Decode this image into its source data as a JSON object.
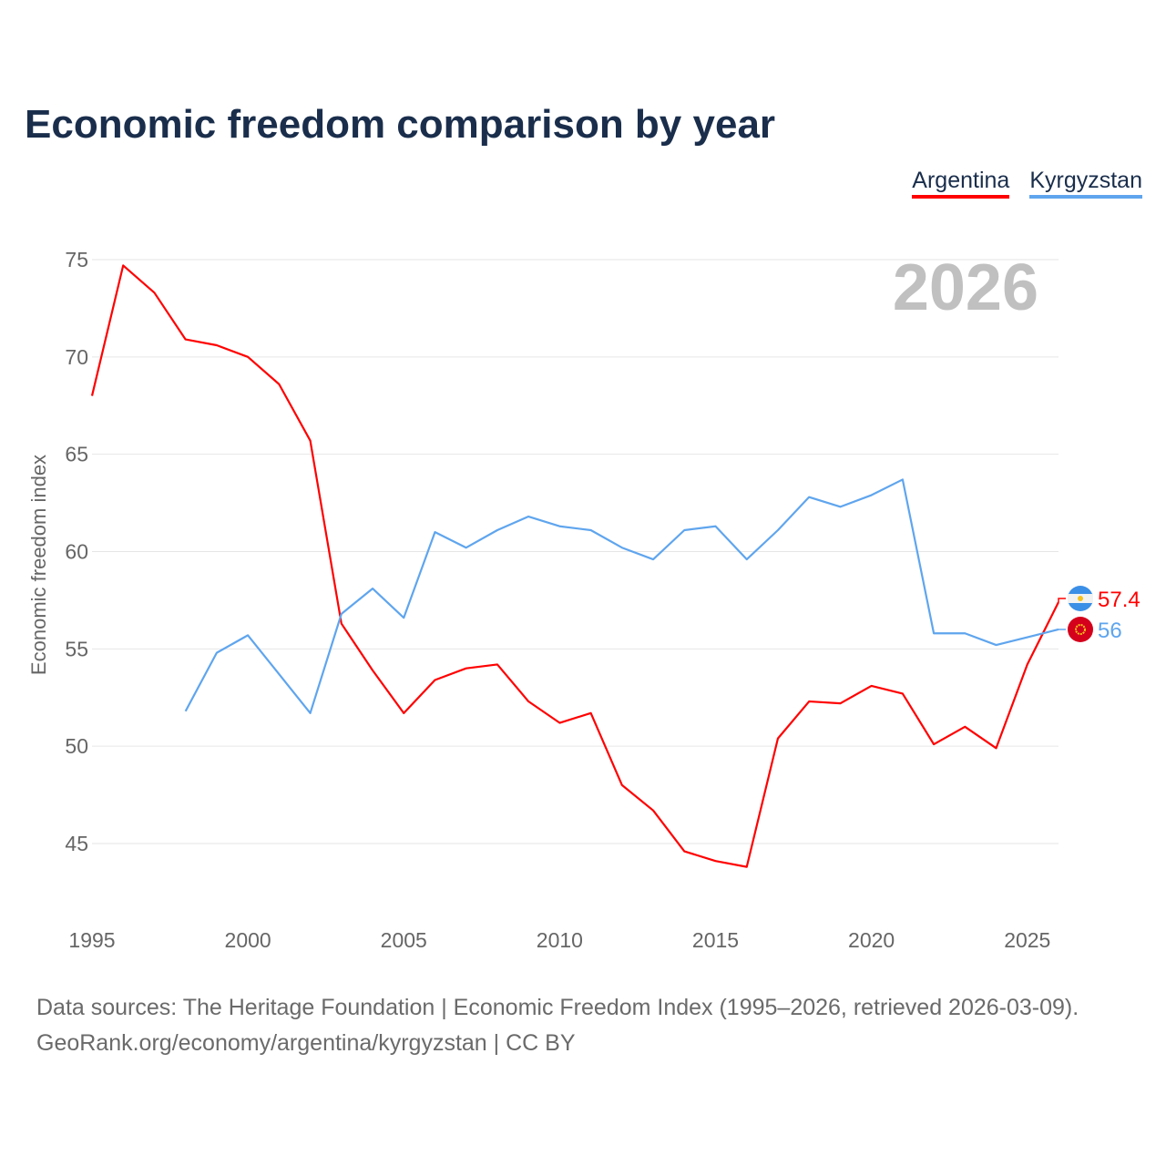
{
  "chart_data": {
    "type": "line",
    "title": "Economic freedom comparison by year",
    "xlabel": "",
    "ylabel": "Economic freedom index",
    "xlim": [
      1995,
      2026
    ],
    "ylim": [
      45,
      75
    ],
    "yticks": [
      45,
      50,
      55,
      60,
      65,
      70,
      75
    ],
    "xticks": [
      1995,
      2000,
      2005,
      2010,
      2015,
      2020,
      2025
    ],
    "grid": true,
    "legend_position": "top-right",
    "watermark_year": "2026",
    "series": [
      {
        "name": "Argentina",
        "color": "#ff0000",
        "end_label": "57.4",
        "x": [
          1995,
          1996,
          1997,
          1998,
          1999,
          2000,
          2001,
          2002,
          2003,
          2004,
          2005,
          2006,
          2007,
          2008,
          2009,
          2010,
          2011,
          2012,
          2013,
          2014,
          2015,
          2016,
          2017,
          2018,
          2019,
          2020,
          2021,
          2022,
          2023,
          2024,
          2025,
          2026
        ],
        "values": [
          68.0,
          74.7,
          73.3,
          70.9,
          70.6,
          70.0,
          68.6,
          65.7,
          56.3,
          53.9,
          51.7,
          53.4,
          54.0,
          54.2,
          52.3,
          51.2,
          51.7,
          48.0,
          46.7,
          44.6,
          44.1,
          43.8,
          50.4,
          52.3,
          52.2,
          53.1,
          52.7,
          50.1,
          51.0,
          49.9,
          54.2,
          57.4
        ]
      },
      {
        "name": "Kyrgyzstan",
        "color": "#5fa5ee",
        "end_label": "56",
        "x": [
          1998,
          1999,
          2000,
          2001,
          2002,
          2003,
          2004,
          2005,
          2006,
          2007,
          2008,
          2009,
          2010,
          2011,
          2012,
          2013,
          2014,
          2015,
          2016,
          2017,
          2018,
          2019,
          2020,
          2021,
          2022,
          2023,
          2024,
          2025,
          2026
        ],
        "values": [
          51.8,
          54.8,
          55.7,
          53.7,
          51.7,
          56.8,
          58.1,
          56.6,
          61.0,
          60.2,
          61.1,
          61.8,
          61.3,
          61.1,
          60.2,
          59.6,
          61.1,
          61.3,
          59.6,
          61.1,
          62.8,
          62.3,
          62.9,
          63.7,
          55.8,
          55.8,
          55.2,
          55.6,
          56.0
        ]
      }
    ]
  },
  "footer": {
    "line1": "Data sources: The Heritage Foundation | Economic Freedom Index (1995–2026, retrieved 2026-03-09).",
    "line2": "GeoRank.org/economy/argentina/kyrgyzstan | CC BY"
  }
}
